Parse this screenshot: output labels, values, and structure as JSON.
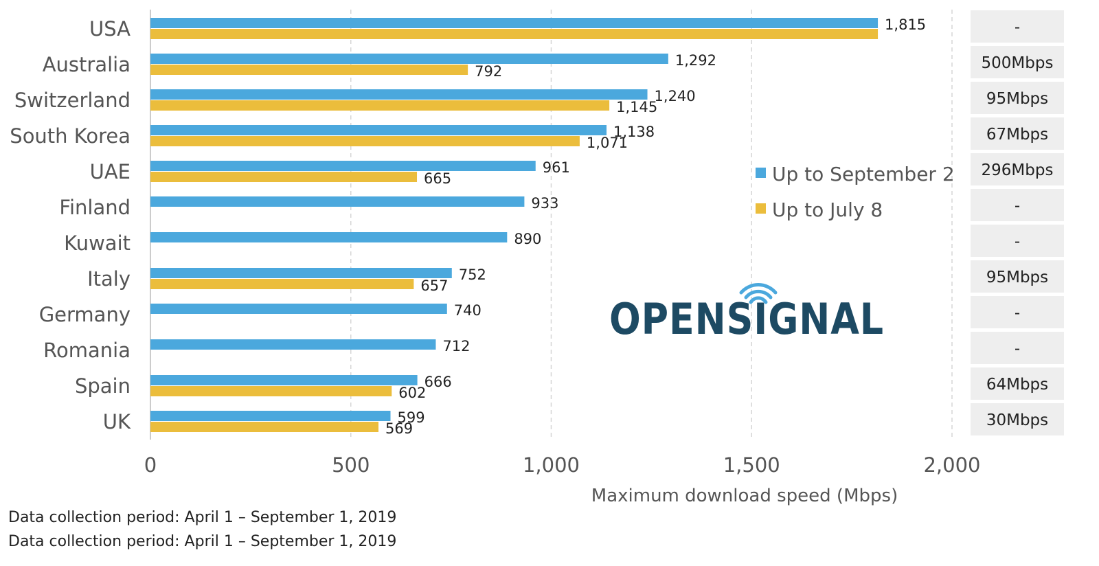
{
  "chart_data": {
    "type": "bar",
    "orientation": "horizontal",
    "categories": [
      "USA",
      "Australia",
      "Switzerland",
      "South Korea",
      "UAE",
      "Finland",
      "Kuwait",
      "Italy",
      "Germany",
      "Romania",
      "Spain",
      "UK"
    ],
    "series": [
      {
        "name": "Up to September 2",
        "color": "#4ba8dd",
        "values": [
          1815,
          1292,
          1240,
          1138,
          961,
          933,
          890,
          752,
          740,
          712,
          666,
          599
        ],
        "labels": [
          "1,815",
          "1,292",
          "1,240",
          "1,138",
          "961",
          "933",
          "890",
          "752",
          "740",
          "712",
          "666",
          "599"
        ]
      },
      {
        "name": "Up to July 8",
        "color": "#ebbd3c",
        "values": [
          1815,
          792,
          1145,
          1071,
          665,
          null,
          null,
          657,
          null,
          null,
          602,
          569
        ],
        "labels": [
          "",
          "792",
          "1,145",
          "1,071",
          "665",
          "",
          "",
          "657",
          "",
          "",
          "602",
          "569"
        ]
      }
    ],
    "xlim": [
      0,
      2000
    ],
    "xticks": [
      0,
      500,
      1000,
      1500,
      2000
    ],
    "xtick_labels": [
      "0",
      "500",
      "1,000",
      "1,500",
      "2,000"
    ],
    "xlabel": "Maximum download speed  (Mbps)",
    "grid": "vertical dashed",
    "legend_position": "right-middle",
    "side_column": [
      "-",
      "500Mbps",
      "95Mbps",
      "67Mbps",
      "296Mbps",
      "-",
      "-",
      "95Mbps",
      "-",
      "-",
      "64Mbps",
      "30Mbps"
    ]
  },
  "logo_text": "OPENSIGNAL",
  "footnotes": [
    "Data collection period: April 1 – September 1, 2019",
    "Data collection period: April 1 – September 1, 2019"
  ]
}
